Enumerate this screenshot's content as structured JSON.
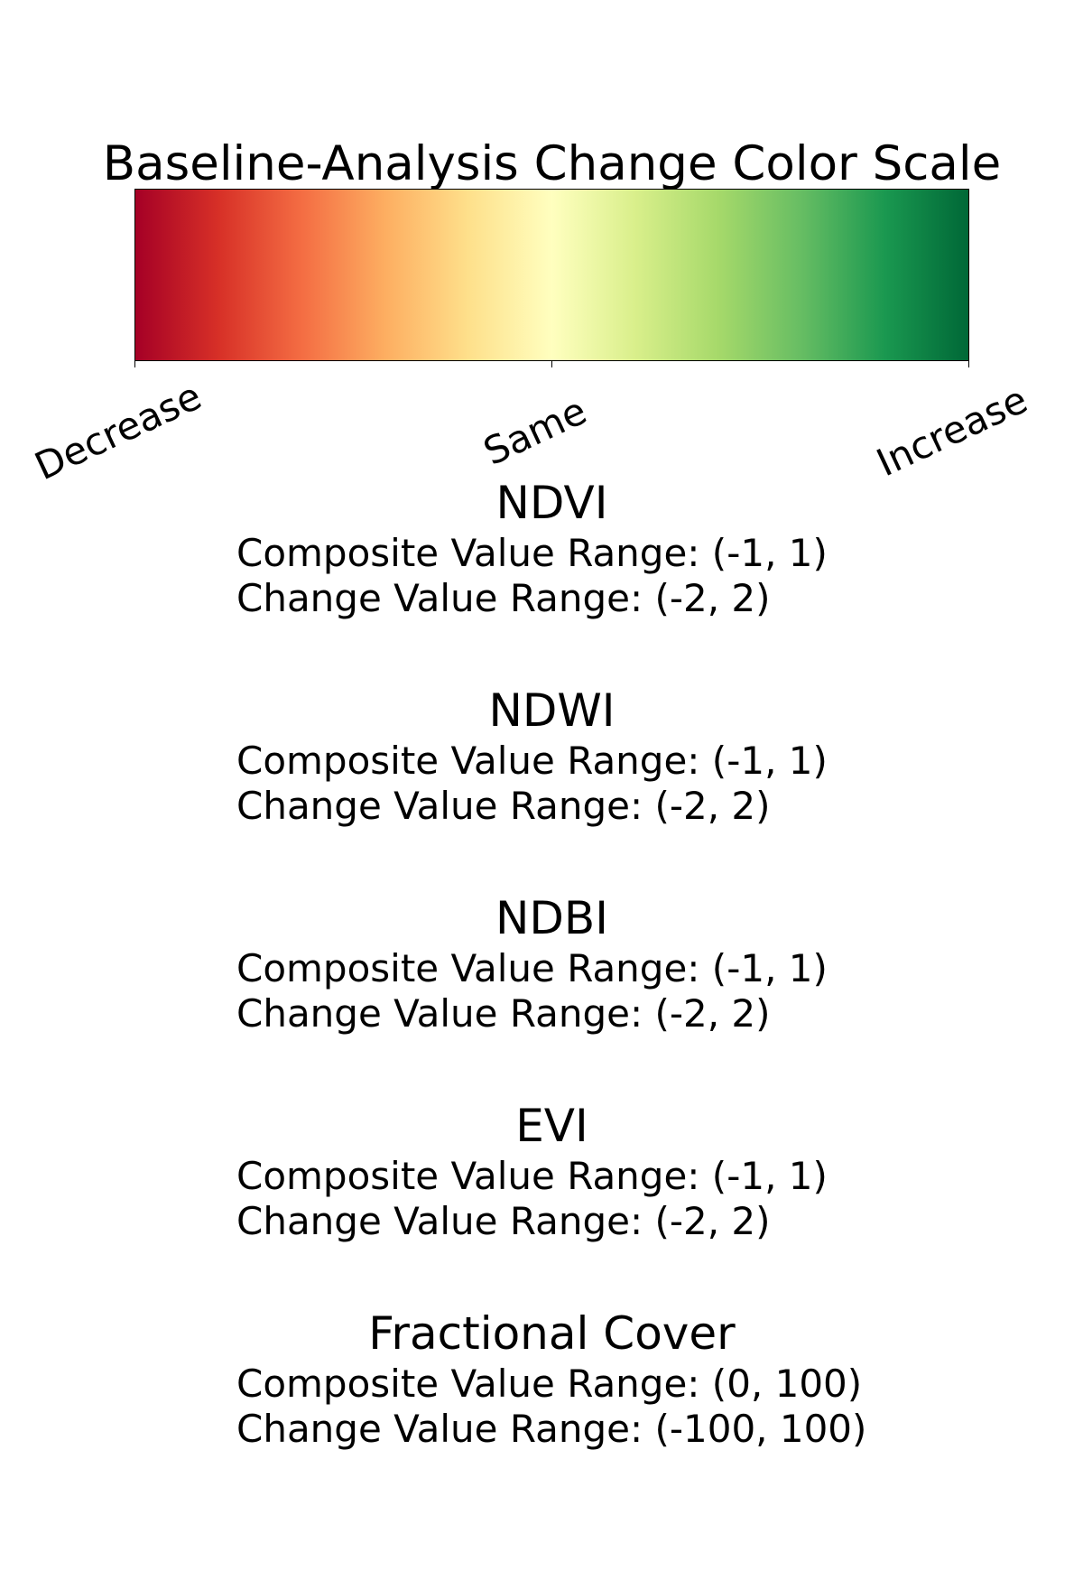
{
  "chart_data": {
    "type": "colorbar",
    "title": "Baseline-Analysis Change Color Scale",
    "colormap": "RdYlGn",
    "colors": [
      "#a50026",
      "#d73027",
      "#f46d43",
      "#fdae61",
      "#fee08b",
      "#ffffbf",
      "#d9ef8b",
      "#a6d96a",
      "#66bd63",
      "#1a9850",
      "#006837"
    ],
    "ticks": [
      {
        "label": "Decrease",
        "position": 0.0
      },
      {
        "label": "Same",
        "position": 0.5
      },
      {
        "label": "Increase",
        "position": 1.0
      }
    ]
  },
  "indices": [
    {
      "name": "NDVI",
      "composite": "Composite Value Range: (-1, 1)",
      "change": "Change Value Range: (-2, 2)"
    },
    {
      "name": "NDWI",
      "composite": "Composite Value Range: (-1, 1)",
      "change": "Change Value Range: (-2, 2)"
    },
    {
      "name": "NDBI",
      "composite": "Composite Value Range: (-1, 1)",
      "change": "Change Value Range: (-2, 2)"
    },
    {
      "name": "EVI",
      "composite": "Composite Value Range: (-1, 1)",
      "change": "Change Value Range: (-2, 2)"
    },
    {
      "name": "Fractional Cover",
      "composite": "Composite Value Range: (0, 100)",
      "change": "Change Value Range: (-100, 100)"
    }
  ]
}
